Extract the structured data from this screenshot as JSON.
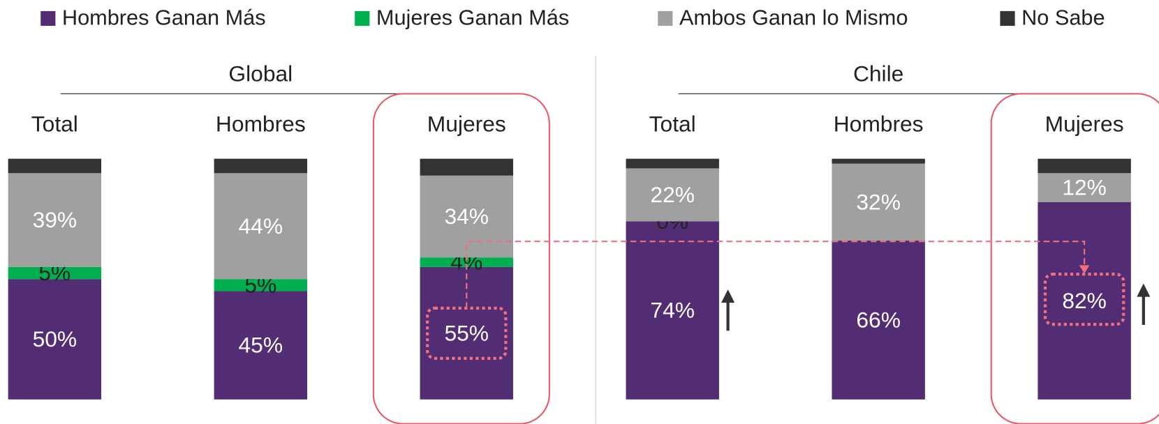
{
  "chart_data": {
    "type": "bar",
    "stacked": true,
    "groups": [
      {
        "title": "Global"
      },
      {
        "title": "Chile"
      }
    ],
    "categories": [
      "Total",
      "Hombres",
      "Mujeres",
      "Total",
      "Hombres",
      "Mujeres"
    ],
    "ylim": [
      0,
      100
    ],
    "series": [
      {
        "name": "Hombres Ganan Más",
        "color": "#532d73",
        "values": [
          50,
          45,
          55,
          74,
          66,
          82
        ],
        "value_labels": [
          "50%",
          "45%",
          "55%",
          "74%",
          "66%",
          "82%"
        ]
      },
      {
        "name": "Mujeres Ganan Más",
        "color": "#00b050",
        "values": [
          5,
          5,
          4,
          0,
          0,
          0
        ],
        "value_labels": [
          "5%",
          "5%",
          "4%",
          "0%",
          null,
          null
        ]
      },
      {
        "name": "Ambos Ganan lo Mismo",
        "color": "#a0a0a0",
        "values": [
          39,
          44,
          34,
          22,
          32,
          12
        ],
        "value_labels": [
          "39%",
          "44%",
          "34%",
          "22%",
          "32%",
          "12%"
        ]
      },
      {
        "name": "No Sabe",
        "color": "#333333",
        "values": [
          6,
          6,
          7,
          4,
          2,
          6
        ]
      }
    ]
  }
}
